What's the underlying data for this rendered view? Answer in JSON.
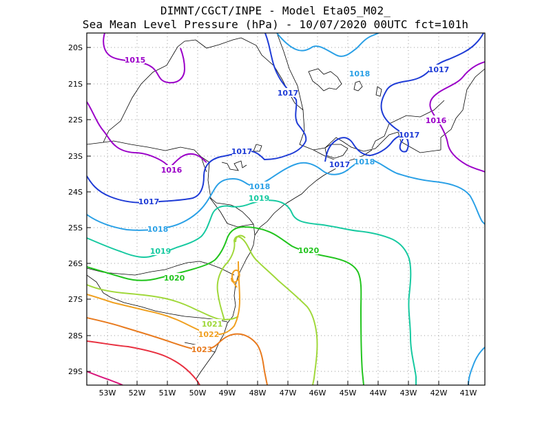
{
  "title_line1": "DIMNT/CGCT/INPE  -   Model Eta05_M02_",
  "title_line2": "Sea Mean Level Pressure (hPa) - 10/07/2020 00UTC fct=101h",
  "lat_ticks": [
    "20S",
    "21S",
    "22S",
    "23S",
    "24S",
    "25S",
    "26S",
    "27S",
    "28S",
    "29S"
  ],
  "lon_ticks": [
    "53W",
    "52W",
    "51W",
    "50W",
    "49W",
    "48W",
    "47W",
    "46W",
    "45W",
    "44W",
    "43W",
    "42W",
    "41W"
  ],
  "contour_labels": [
    {
      "text": "1015",
      "color": "#9b00c8"
    },
    {
      "text": "1017",
      "color": "#1f3cd6"
    },
    {
      "text": "1018",
      "color": "#2aa0e6"
    },
    {
      "text": "1017",
      "color": "#1f3cd6"
    },
    {
      "text": "1016",
      "color": "#9b00c8"
    },
    {
      "text": "1017",
      "color": "#1f3cd6"
    },
    {
      "text": "1017",
      "color": "#1f3cd6"
    },
    {
      "text": "1017",
      "color": "#1f3cd6"
    },
    {
      "text": "1018",
      "color": "#2aa0e6"
    },
    {
      "text": "1016",
      "color": "#9b00c8"
    },
    {
      "text": "1018",
      "color": "#2aa0e6"
    },
    {
      "text": "1017",
      "color": "#1f3cd6"
    },
    {
      "text": "1019",
      "color": "#16c9a0"
    },
    {
      "text": "1018",
      "color": "#2aa0e6"
    },
    {
      "text": "1019",
      "color": "#16c9a0"
    },
    {
      "text": "1020",
      "color": "#22c41e"
    },
    {
      "text": "1020",
      "color": "#22c41e"
    },
    {
      "text": "1021",
      "color": "#a0d83a"
    },
    {
      "text": "1022",
      "color": "#f0a020"
    },
    {
      "text": "1023",
      "color": "#e87a1e"
    }
  ]
}
